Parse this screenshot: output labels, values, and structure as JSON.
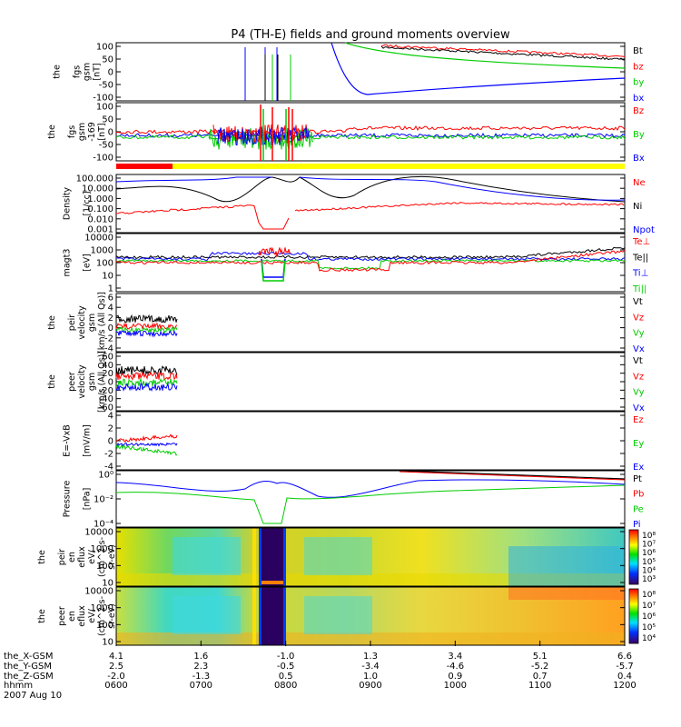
{
  "title": "P4 (TH-E) fields and ground moments overview",
  "footer": {
    "date": "2007 Aug 10",
    "rows": [
      {
        "label": "the_X-GSM",
        "values": [
          "4.1",
          "1.6",
          "-1.0",
          "1.3",
          "3.4",
          "5.1",
          "6.6"
        ]
      },
      {
        "label": "the_Y-GSM",
        "values": [
          "2.5",
          "2.3",
          "-0.5",
          "-3.4",
          "-4.6",
          "-5.2",
          "-5.7"
        ]
      },
      {
        "label": "the_Z-GSM",
        "values": [
          "-2.0",
          "-1.3",
          "0.5",
          "1.0",
          "0.9",
          "0.7",
          "0.4"
        ]
      },
      {
        "label": "hhmm",
        "values": [
          "0600",
          "0700",
          "0800",
          "0900",
          "1000",
          "1100",
          "1200"
        ]
      }
    ]
  },
  "chart_data": [
    {
      "type": "line",
      "ylabel": [
        "the",
        "fgs",
        "gsm",
        "[nT]"
      ],
      "yticks": [
        "100",
        "50",
        "0",
        "-50",
        "-100"
      ],
      "ylim": [
        -110,
        110
      ],
      "legend": [
        {
          "name": "Bt",
          "color": "#000000"
        },
        {
          "name": "bz",
          "color": "#ff0000"
        },
        {
          "name": "by",
          "color": "#00cc00"
        },
        {
          "name": "bx",
          "color": "#0000ff"
        }
      ]
    },
    {
      "type": "line",
      "ylabel": [
        "the",
        "fgs",
        "gsm",
        "-169",
        "[nT]"
      ],
      "yticks": [
        "100",
        "50",
        "0",
        "-50",
        "-100"
      ],
      "ylim": [
        -110,
        110
      ],
      "legend": [
        {
          "name": "Bz",
          "color": "#ff0000"
        },
        {
          "name": "By",
          "color": "#00cc00"
        },
        {
          "name": "Bx",
          "color": "#0000ff"
        }
      ]
    },
    {
      "type": "line",
      "ylabel": [
        "Density",
        "[1/cc]"
      ],
      "yticks": [
        "100.000",
        "10.000",
        "1.000",
        "0.100",
        "0.010",
        "0.001"
      ],
      "scale": "log",
      "legend": [
        {
          "name": "Ne",
          "color": "#ff0000"
        },
        {
          "name": "Ni",
          "color": "#000000"
        },
        {
          "name": "Npot",
          "color": "#0000ff"
        }
      ]
    },
    {
      "type": "line",
      "ylabel": [
        "magt3",
        "[eV]"
      ],
      "yticks": [
        "10000",
        "1000",
        "100",
        "10",
        "1"
      ],
      "scale": "log",
      "legend": [
        {
          "name": "Te⊥",
          "color": "#ff0000"
        },
        {
          "name": "Te||",
          "color": "#000000"
        },
        {
          "name": "Ti⊥",
          "color": "#0000ff"
        },
        {
          "name": "Ti||",
          "color": "#00cc00"
        }
      ]
    },
    {
      "type": "line",
      "ylabel": [
        "the",
        "peir",
        "velocity",
        "gsm",
        "[km/s (All Qs)]"
      ],
      "yticks": [
        "6",
        "4",
        "2",
        "0",
        "-2",
        "-4"
      ],
      "legend": [
        {
          "name": "Vt",
          "color": "#000000"
        },
        {
          "name": "Vz",
          "color": "#ff0000"
        },
        {
          "name": "Vy",
          "color": "#00cc00"
        },
        {
          "name": "Vx",
          "color": "#0000ff"
        }
      ]
    },
    {
      "type": "line",
      "ylabel": [
        "the",
        "peer",
        "velocity",
        "gsm",
        "[km/s (All Qs)]"
      ],
      "yticks": [
        "60",
        "40",
        "20",
        "0",
        "-20",
        "-40",
        "-60"
      ],
      "legend": [
        {
          "name": "Vt",
          "color": "#000000"
        },
        {
          "name": "Vz",
          "color": "#ff0000"
        },
        {
          "name": "Vy",
          "color": "#00cc00"
        },
        {
          "name": "Vx",
          "color": "#0000ff"
        }
      ]
    },
    {
      "type": "line",
      "ylabel": [
        "E=-VxB",
        "[mV/m]"
      ],
      "yticks": [
        "4",
        "2",
        "0",
        "-2",
        "-4"
      ],
      "legend": [
        {
          "name": "Ez",
          "color": "#ff0000"
        },
        {
          "name": "Ey",
          "color": "#00cc00"
        },
        {
          "name": "Ex",
          "color": "#0000ff"
        }
      ]
    },
    {
      "type": "line",
      "ylabel": [
        "Pressure",
        "[nPa]"
      ],
      "yticks": [
        "10⁰",
        "10⁻²",
        "10⁻⁴"
      ],
      "scale": "log",
      "legend": [
        {
          "name": "Pt",
          "color": "#000000"
        },
        {
          "name": "Pb",
          "color": "#ff0000"
        },
        {
          "name": "Pe",
          "color": "#00cc00"
        },
        {
          "name": "Pi",
          "color": "#0000ff"
        }
      ]
    },
    {
      "type": "heatmap",
      "ylabel": [
        "the",
        "peir",
        "en",
        "eflux",
        "eV/",
        "(cm^2-s-",
        "sr-eV)"
      ],
      "yticks": [
        "10000",
        "1000",
        "100",
        "10"
      ],
      "scale": "log",
      "colorbar": [
        "10⁸",
        "10⁷",
        "10⁶",
        "10⁵",
        "10⁴",
        "10³"
      ]
    },
    {
      "type": "heatmap",
      "ylabel": [
        "the",
        "peer",
        "en",
        "eflux",
        "eV/",
        "(cm^2-s-",
        "sr-eV)"
      ],
      "yticks": [
        "10000",
        "1000",
        "100",
        "10"
      ],
      "scale": "log",
      "colorbar": [
        "10⁸",
        "10⁷",
        "10⁶",
        "10⁵",
        "10⁴"
      ]
    }
  ]
}
